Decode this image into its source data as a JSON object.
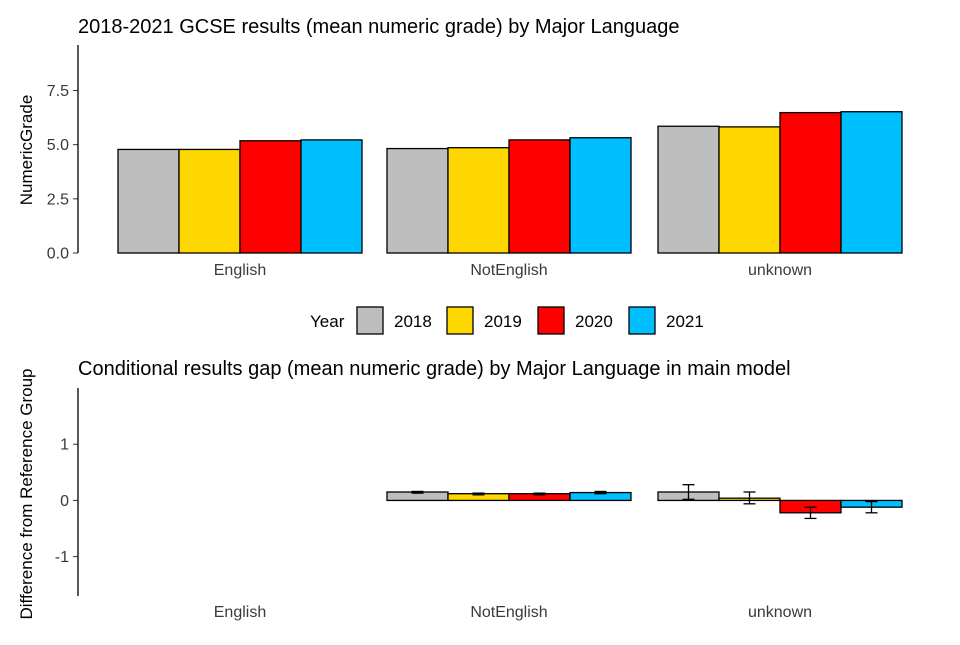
{
  "chart_data": [
    {
      "type": "bar",
      "title": "2018-2021 GCSE results (mean numeric grade) by Major Language",
      "xlabel": "",
      "ylabel": "NumericGrade",
      "categories": [
        "English",
        "NotEnglish",
        "unknown"
      ],
      "yticks": [
        "0.0",
        "2.5",
        "5.0",
        "7.5"
      ],
      "ylim": [
        0,
        9.6
      ],
      "series": [
        {
          "name": "2018",
          "values": [
            4.78,
            4.82,
            5.85
          ]
        },
        {
          "name": "2019",
          "values": [
            4.78,
            4.86,
            5.82
          ]
        },
        {
          "name": "2020",
          "values": [
            5.18,
            5.22,
            6.48
          ]
        },
        {
          "name": "2021",
          "values": [
            5.22,
            5.32,
            6.52
          ]
        }
      ]
    },
    {
      "type": "bar",
      "title": "Conditional results gap (mean numeric grade) by Major Language in main model",
      "xlabel": "",
      "ylabel": "Difference from Reference Group",
      "categories": [
        "English",
        "NotEnglish",
        "unknown"
      ],
      "yticks": [
        "-1",
        "0",
        "1"
      ],
      "ylim": [
        -1.7,
        2.0
      ],
      "series": [
        {
          "name": "2018",
          "values": [
            null,
            0.15,
            0.15
          ],
          "err_low": [
            null,
            0.13,
            0.02
          ],
          "err_high": [
            null,
            0.16,
            0.28
          ]
        },
        {
          "name": "2019",
          "values": [
            null,
            0.12,
            0.04
          ],
          "err_low": [
            null,
            0.1,
            -0.06
          ],
          "err_high": [
            null,
            0.13,
            0.15
          ]
        },
        {
          "name": "2020",
          "values": [
            null,
            0.12,
            -0.22
          ],
          "err_low": [
            null,
            0.1,
            -0.32
          ],
          "err_high": [
            null,
            0.13,
            -0.12
          ]
        },
        {
          "name": "2021",
          "values": [
            null,
            0.14,
            -0.12
          ],
          "err_low": [
            null,
            0.12,
            -0.22
          ],
          "err_high": [
            null,
            0.16,
            -0.02
          ]
        }
      ]
    }
  ],
  "legend": {
    "title": "Year",
    "items": [
      {
        "label": "2018",
        "color": "#bebebe"
      },
      {
        "label": "2019",
        "color": "#ffd700"
      },
      {
        "label": "2020",
        "color": "#ff0000"
      },
      {
        "label": "2021",
        "color": "#00bfff"
      }
    ]
  }
}
